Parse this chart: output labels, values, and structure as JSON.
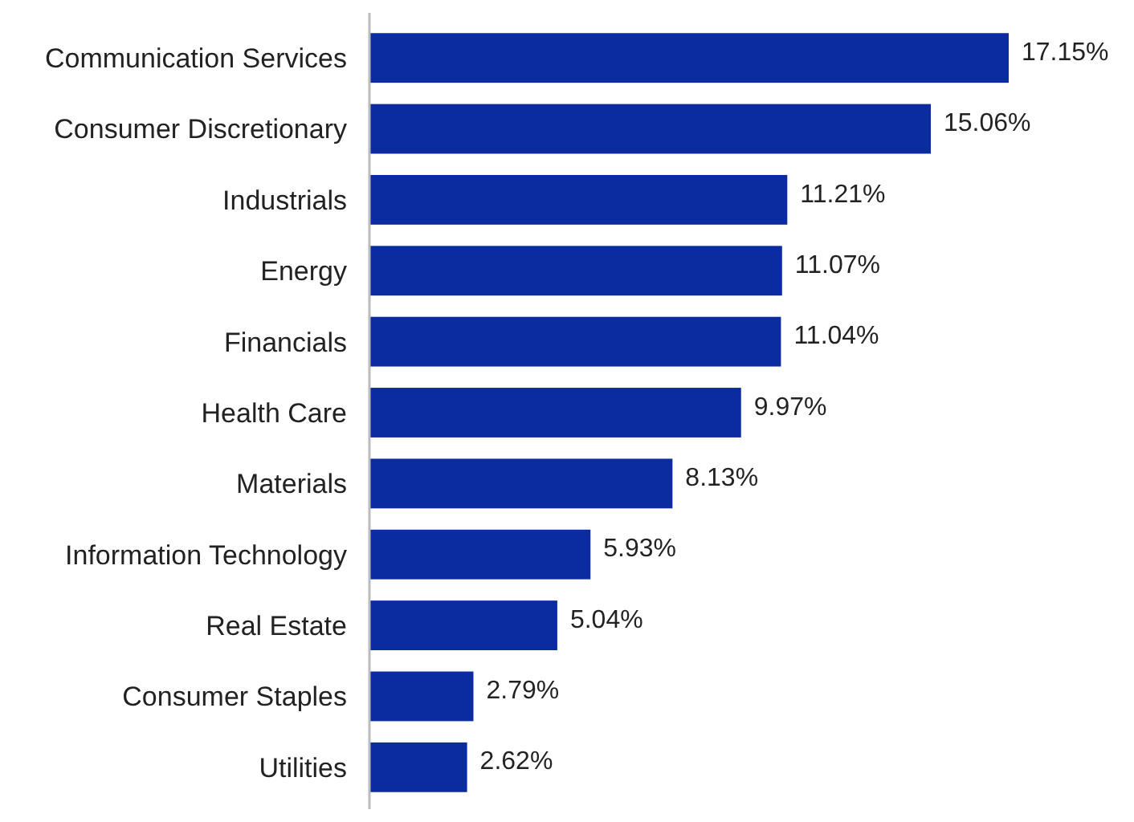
{
  "chart_data": {
    "type": "bar",
    "orientation": "horizontal",
    "categories": [
      "Communication Services",
      "Consumer Discretionary",
      "Industrials",
      "Energy",
      "Financials",
      "Health Care",
      "Materials",
      "Information Technology",
      "Real Estate",
      "Consumer Staples",
      "Utilities"
    ],
    "values": [
      17.15,
      15.06,
      11.21,
      11.07,
      11.04,
      9.97,
      8.13,
      5.93,
      5.04,
      2.79,
      2.62
    ],
    "value_labels": [
      "17.15%",
      "15.06%",
      "11.21%",
      "11.07%",
      "11.04%",
      "9.97%",
      "8.13%",
      "5.93%",
      "5.04%",
      "2.79%",
      "2.62%"
    ],
    "color": "#0a2ca0"
  }
}
